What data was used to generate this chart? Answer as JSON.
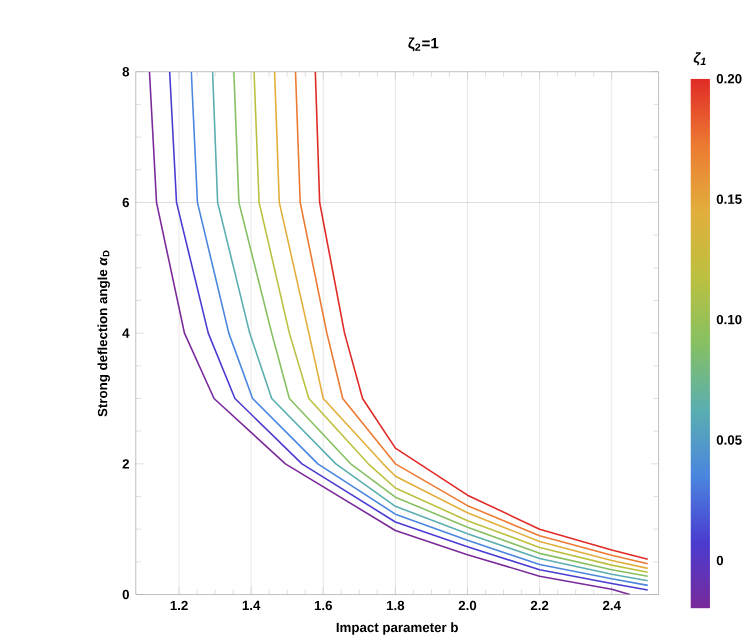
{
  "chart_data": {
    "type": "line",
    "title": "ζ$_{2}$=1",
    "xlabel": "Impact parameter b",
    "ylabel": "Strong deflection angle *α*$_{D}$",
    "clabel": "ζ$_{1}$",
    "xlim": [
      1.08,
      2.53
    ],
    "ylim": [
      0,
      8
    ],
    "xticks": [
      {
        "value": 1.2,
        "label": "1.2"
      },
      {
        "value": 1.4,
        "label": "1.4"
      },
      {
        "value": 1.6,
        "label": "1.6"
      },
      {
        "value": 1.8,
        "label": "1.8"
      },
      {
        "value": 2.0,
        "label": "2.0"
      },
      {
        "value": 2.2,
        "label": "2.2"
      },
      {
        "value": 2.4,
        "label": "2.4"
      }
    ],
    "yticks": [
      0,
      2,
      4,
      6,
      8
    ],
    "clim": [
      -0.02,
      0.2
    ],
    "cticks": [
      0,
      0.05,
      {
        "value": 0.1,
        "label": "0.10"
      },
      0.15,
      {
        "value": 0.2,
        "label": "0.20"
      }
    ],
    "grid": "x",
    "ref_lines": [
      {
        "axis": "y",
        "value": 6,
        "color": "#dcdcdc"
      }
    ],
    "series": [
      {
        "color": "#7a2a9a",
        "x": [
          1.118,
          1.1375,
          1.215,
          1.297,
          1.495,
          1.8,
          2.0,
          2.2,
          2.4,
          2.45
        ],
        "values": [
          8,
          6,
          4,
          3,
          2,
          0.98,
          0.61,
          0.28,
          0.08,
          0
        ]
      },
      {
        "color": "#4a3cd0",
        "x": [
          1.174,
          1.193,
          1.281,
          1.355,
          1.541,
          1.8,
          2.0,
          2.2,
          2.4,
          2.5
        ],
        "values": [
          8,
          6,
          4,
          3,
          2,
          1.11,
          0.73,
          0.38,
          0.17,
          0.07
        ]
      },
      {
        "color": "#4a86de",
        "x": [
          1.234,
          1.251,
          1.338,
          1.404,
          1.585,
          1.8,
          2.0,
          2.2,
          2.4,
          2.5
        ],
        "values": [
          8,
          6,
          4,
          3,
          2,
          1.23,
          0.83,
          0.46,
          0.24,
          0.14
        ]
      },
      {
        "color": "#5aaeb0",
        "x": [
          1.293,
          1.307,
          1.396,
          1.457,
          1.635,
          1.8,
          2.0,
          2.2,
          2.4,
          2.5
        ],
        "values": [
          8,
          6,
          4,
          3,
          2,
          1.35,
          0.93,
          0.55,
          0.31,
          0.21
        ]
      },
      {
        "color": "#86c062",
        "x": [
          1.352,
          1.366,
          1.457,
          1.506,
          1.676,
          1.8,
          2.0,
          2.2,
          2.4,
          2.5
        ],
        "values": [
          8,
          6,
          4,
          3,
          2,
          1.49,
          1.03,
          0.63,
          0.38,
          0.28
        ]
      },
      {
        "color": "#bcc040",
        "x": [
          1.408,
          1.422,
          1.506,
          1.56,
          1.725,
          1.8,
          2.0,
          2.2,
          2.4,
          2.5
        ],
        "values": [
          8,
          6,
          4,
          3,
          2,
          1.63,
          1.13,
          0.72,
          0.45,
          0.34
        ]
      },
      {
        "color": "#e2ae3c",
        "x": [
          1.465,
          1.478,
          1.56,
          1.6,
          1.766,
          1.8,
          2.0,
          2.2,
          2.4,
          2.5
        ],
        "values": [
          8,
          6,
          4,
          3,
          2,
          1.81,
          1.25,
          0.81,
          0.52,
          0.4
        ]
      },
      {
        "color": "#ec7a32",
        "x": [
          1.523,
          1.536,
          1.61,
          1.654,
          1.8,
          2.0,
          2.2,
          2.4,
          2.5
        ],
        "values": [
          8,
          6,
          4,
          3,
          2.0,
          1.36,
          0.9,
          0.6,
          0.47
        ]
      },
      {
        "color": "#e02a26",
        "x": [
          1.578,
          1.59,
          1.659,
          1.709,
          1.8,
          2.0,
          2.2,
          2.4,
          2.5
        ],
        "values": [
          8,
          6,
          4,
          3,
          2.24,
          1.52,
          1.0,
          0.68,
          0.54
        ]
      }
    ]
  }
}
